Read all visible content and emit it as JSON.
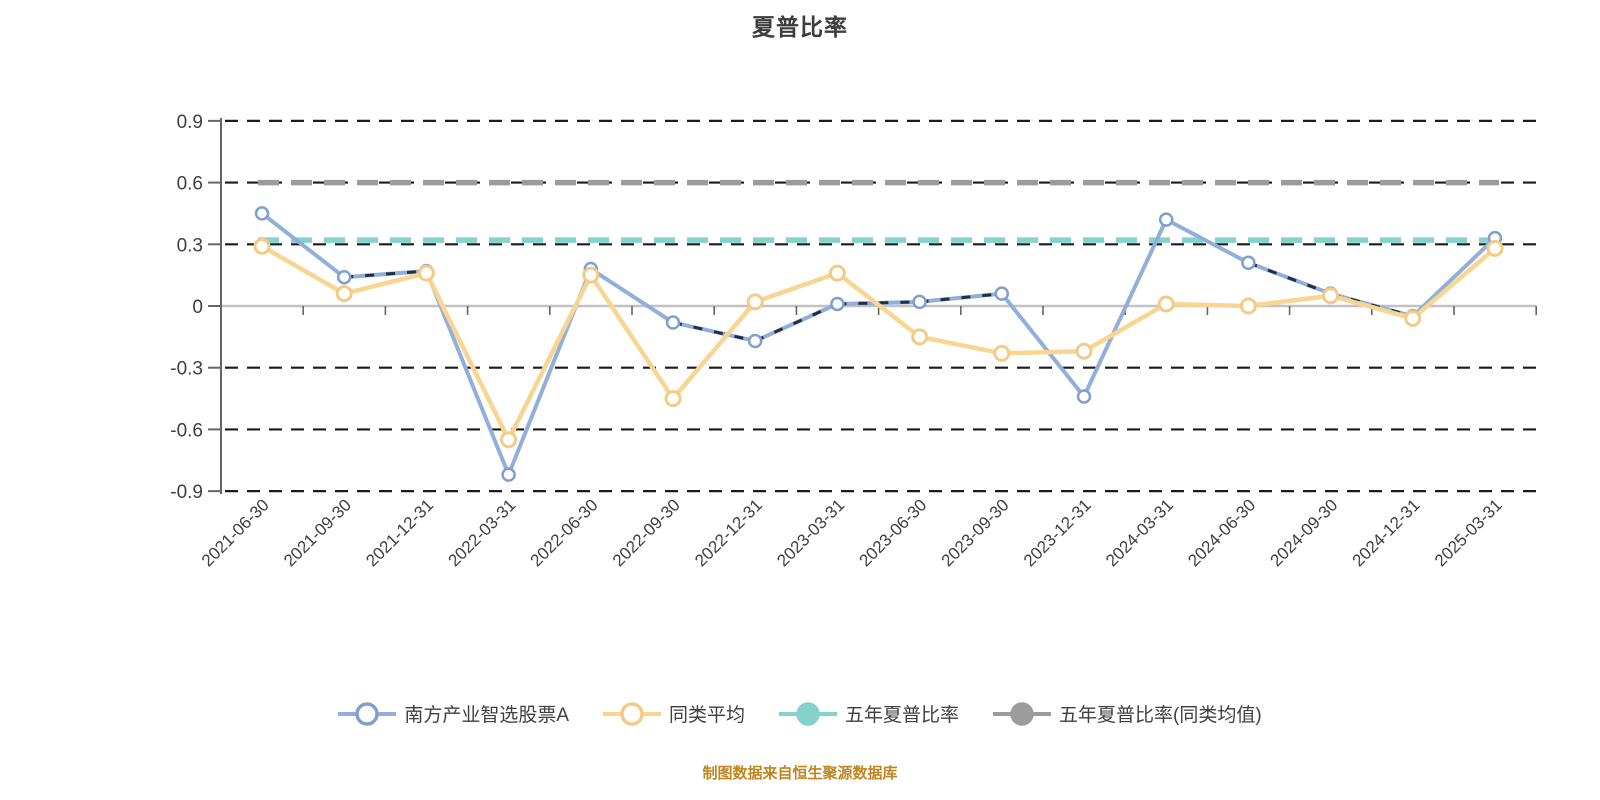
{
  "title": "夏普比率",
  "footer": "制图数据来自恒生聚源数据库",
  "colors": {
    "title_text": "#3d3d3d",
    "axis_label_text": "#3f3f3f",
    "gridline": "#1b1b1b",
    "zero_line": "#c2c2c2",
    "axis_line": "#666666",
    "footer_text": "#bf8620",
    "series_blue": "#91afda",
    "series_yellow": "#f9d592",
    "series_teal": "#85d2cc",
    "series_gray": "#9c9c9c",
    "blue_overlay_dash": "#222e42"
  },
  "chart_data": {
    "type": "line",
    "title": "夏普比率",
    "categories": [
      "2021-06-30",
      "2021-09-30",
      "2021-12-31",
      "2022-03-31",
      "2022-06-30",
      "2022-09-30",
      "2022-12-31",
      "2023-03-31",
      "2023-06-30",
      "2023-09-30",
      "2023-12-31",
      "2024-03-31",
      "2024-06-30",
      "2024-09-30",
      "2024-12-31",
      "2025-03-31"
    ],
    "series": [
      {
        "name": "南方产业智选股票A",
        "type": "line",
        "color": "#91afda",
        "marker_ring": "#7fa0cf",
        "marker_style": "hollow",
        "overlay_dash_color": "#222e42",
        "values": [
          0.45,
          0.14,
          0.17,
          -0.82,
          0.18,
          -0.08,
          -0.17,
          0.01,
          0.02,
          0.06,
          -0.44,
          0.42,
          0.21,
          0.06,
          -0.05,
          0.33
        ]
      },
      {
        "name": "同类平均",
        "type": "line",
        "color": "#f9d592",
        "marker_ring": "#f3cb86",
        "marker_style": "hollow",
        "values": [
          0.29,
          0.06,
          0.16,
          -0.65,
          0.15,
          -0.45,
          0.02,
          0.16,
          -0.15,
          -0.23,
          -0.22,
          0.01,
          0.0,
          0.05,
          -0.06,
          0.28
        ]
      },
      {
        "name": "五年夏普比率",
        "type": "hline",
        "color": "#85d2cc",
        "marker_style": "solid",
        "const_value": 0.32
      },
      {
        "name": "五年夏普比率(同类均值)",
        "type": "hline",
        "color": "#9c9c9c",
        "marker_style": "solid",
        "const_value": 0.6
      }
    ],
    "ylim": [
      -0.9,
      0.9
    ],
    "yticks": [
      "0.9",
      "0.6",
      "0.3",
      "0",
      "-0.3",
      "-0.6",
      "-0.9"
    ],
    "ytick_values": [
      0.9,
      0.6,
      0.3,
      0,
      -0.3,
      -0.6,
      -0.9
    ],
    "grid": "dashed-horizontal",
    "x_labels_rotated_deg": 45,
    "legend_position": "bottom"
  }
}
